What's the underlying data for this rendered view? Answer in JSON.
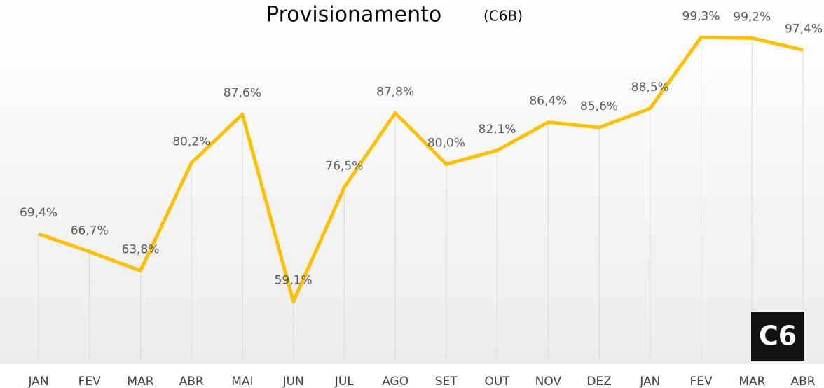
{
  "chart_data": {
    "type": "line",
    "title": "Provisionamento",
    "subtitle": "(C6B)",
    "logo": "C6",
    "categories": [
      "JAN",
      "FEV",
      "MAR",
      "ABR",
      "MAI",
      "JUN",
      "JUL",
      "AGO",
      "SET",
      "OUT",
      "NOV",
      "DEZ",
      "JAN",
      "FEV",
      "MAR",
      "ABR"
    ],
    "series": [
      {
        "name": "Provisionamento",
        "color": "#FFC000",
        "values": [
          69.4,
          66.7,
          63.8,
          80.2,
          87.6,
          59.1,
          76.5,
          87.8,
          80.0,
          82.1,
          86.4,
          85.6,
          88.5,
          99.3,
          99.2,
          97.4
        ],
        "value_labels": [
          "69,4%",
          "66,7%",
          "63,8%",
          "80,2%",
          "87,6%",
          "59,1%",
          "76,5%",
          "87,8%",
          "80,0%",
          "82,1%",
          "86,4%",
          "85,6%",
          "88,5%",
          "99,3%",
          "99,2%",
          "97,4%"
        ]
      }
    ],
    "ylim": [
      50,
      105
    ]
  }
}
